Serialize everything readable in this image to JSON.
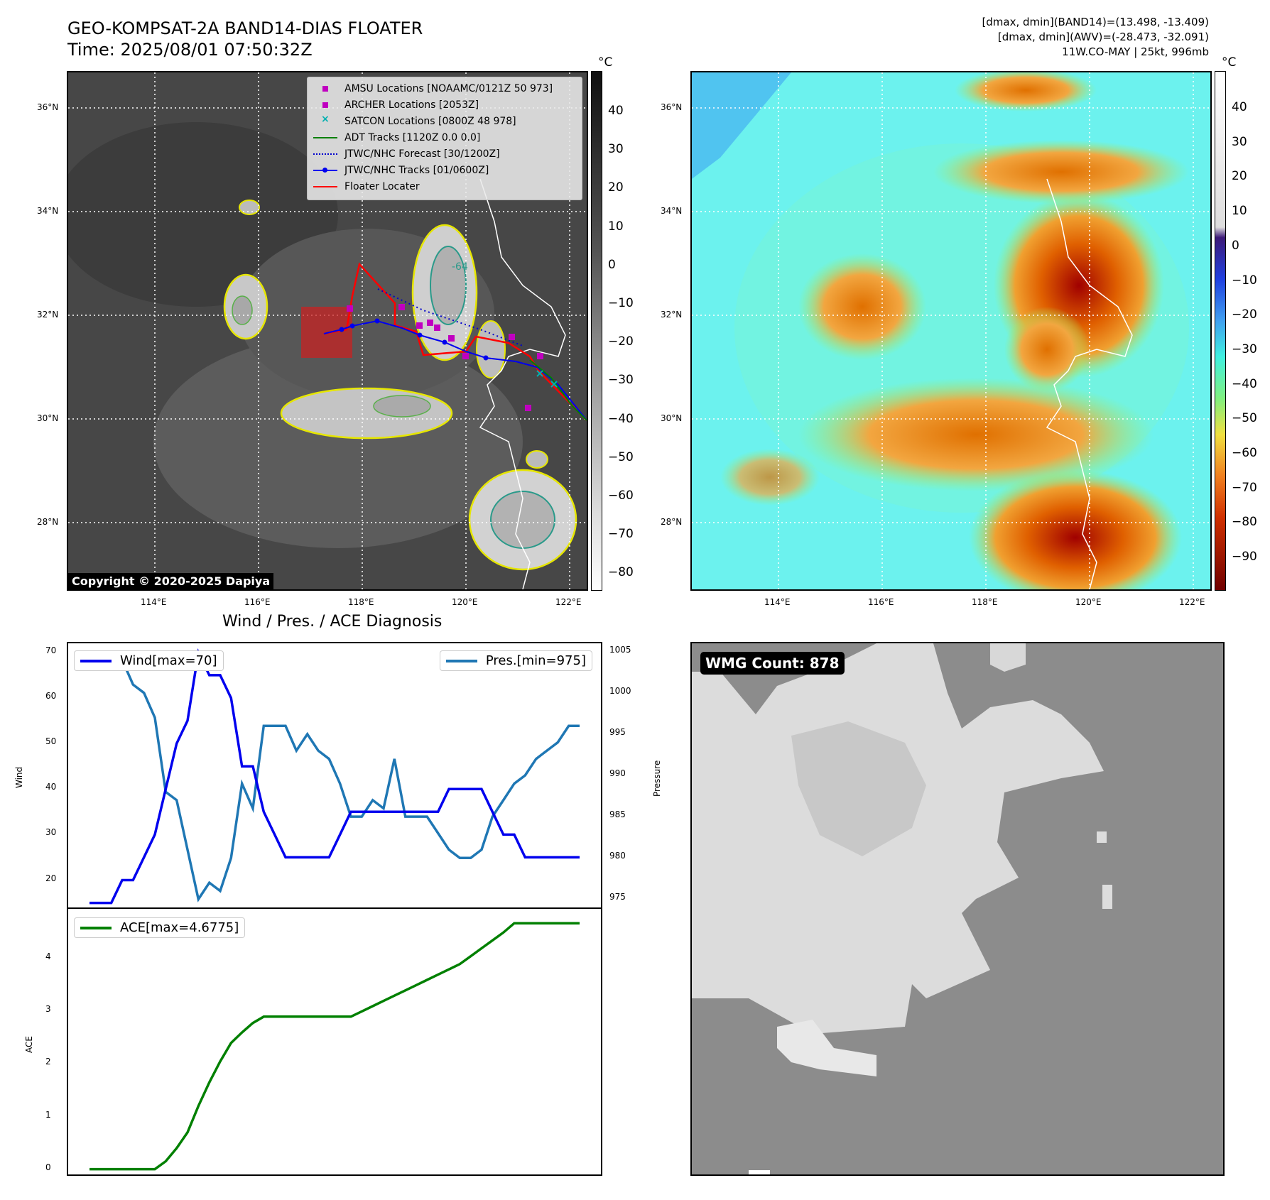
{
  "header": {
    "title_line1": "GEO-KOMPSAT-2A BAND14-DIAS FLOATER",
    "title_line2": "Time: 2025/08/01 07:50:32Z",
    "info_line1": "[dmax, dmin](BAND14)=(13.498, -13.409)",
    "info_line2": "[dmax, dmin](AWV)=(-28.473, -32.091)",
    "info_line3": "11W.CO-MAY | 25kt, 996mb"
  },
  "map": {
    "lat_labels": [
      "36°N",
      "34°N",
      "32°N",
      "30°N",
      "28°N"
    ],
    "lon_labels": [
      "114°E",
      "116°E",
      "118°E",
      "120°E",
      "122°E"
    ],
    "copyright": "Copyright © 2020-2025 Dapiya",
    "contour_label": "-64",
    "legend": [
      {
        "label": "AMSU Locations [NOAAMC/0121Z 50 973]",
        "color": "#c000c0",
        "symbol": "square"
      },
      {
        "label": "ARCHER Locations [2053Z]",
        "color": "#c000c0",
        "symbol": "square"
      },
      {
        "label": "SATCON Locations [0800Z 48 978]",
        "color": "#00b0b0",
        "symbol": "x"
      },
      {
        "label": "ADT Tracks [1120Z 0.0 0.0]",
        "color": "#008000",
        "symbol": "line"
      },
      {
        "label": "JTWC/NHC Forecast [30/1200Z]",
        "color": "#0000cc",
        "symbol": "dotted"
      },
      {
        "label": "JTWC/NHC Tracks [01/0600Z]",
        "color": "#0000ee",
        "symbol": "line-dot"
      },
      {
        "label": "Floater Locater",
        "color": "#ff0000",
        "symbol": "line"
      }
    ]
  },
  "colorbar_left": {
    "unit": "°C",
    "labels": [
      "40",
      "30",
      "20",
      "10",
      "0",
      "−10",
      "−20",
      "−30",
      "−40",
      "−50",
      "−60",
      "−70",
      "−80"
    ]
  },
  "colorbar_right": {
    "unit": "°C",
    "labels": [
      "40",
      "30",
      "20",
      "10",
      "0",
      "−10",
      "−20",
      "−30",
      "−40",
      "−50",
      "−60",
      "−70",
      "−80",
      "−90"
    ]
  },
  "wmg": {
    "label": "WMG Count: 878"
  },
  "chart_data": [
    {
      "type": "line",
      "title": "Wind / Pres. / ACE Diagnosis",
      "ylabel_left": "Wind",
      "ylabel_right": "Pressure",
      "left_ylim": [
        14,
        72
      ],
      "right_ylim": [
        974,
        1006
      ],
      "left_ticks": [
        "70",
        "60",
        "50",
        "40",
        "30",
        "20"
      ],
      "right_ticks": [
        "1005",
        "1000",
        "995",
        "990",
        "985",
        "980",
        "975"
      ],
      "x": [
        0,
        1,
        2,
        3,
        4,
        5,
        6,
        7,
        8,
        9,
        10,
        11,
        12,
        13,
        14,
        15,
        16,
        17,
        18,
        19,
        20,
        21,
        22,
        23,
        24,
        25,
        26,
        27,
        28,
        29,
        30,
        31,
        32,
        33,
        34,
        35,
        36,
        37,
        38,
        39,
        40,
        41,
        42,
        43,
        44,
        45
      ],
      "series": [
        {
          "name": "Wind[max=70]",
          "axis": "left",
          "color": "#0000ee",
          "values": [
            15,
            15,
            15,
            20,
            20,
            25,
            30,
            40,
            50,
            55,
            70,
            65,
            65,
            60,
            45,
            45,
            35,
            30,
            25,
            25,
            25,
            25,
            25,
            30,
            35,
            35,
            35,
            35,
            35,
            35,
            35,
            35,
            35,
            40,
            40,
            40,
            40,
            35,
            30,
            30,
            25,
            25,
            25,
            25,
            25,
            25
          ]
        },
        {
          "name": "Pres.[min=975]",
          "axis": "right",
          "color": "#1f77b4",
          "values": [
            1004,
            1004,
            1004,
            1004,
            1001,
            1000,
            997,
            988,
            987,
            981,
            975,
            977,
            976,
            980,
            989,
            986,
            996,
            996,
            996,
            993,
            995,
            993,
            992,
            989,
            985,
            985,
            987,
            986,
            992,
            985,
            985,
            985,
            983,
            981,
            980,
            980,
            981,
            985,
            987,
            989,
            990,
            992,
            993,
            994,
            996,
            996
          ]
        }
      ]
    },
    {
      "type": "line",
      "ylabel": "ACE",
      "ylim": [
        -0.1,
        4.95
      ],
      "ticks": [
        "4",
        "3",
        "2",
        "1",
        "0"
      ],
      "x": [
        0,
        1,
        2,
        3,
        4,
        5,
        6,
        7,
        8,
        9,
        10,
        11,
        12,
        13,
        14,
        15,
        16,
        17,
        18,
        19,
        20,
        21,
        22,
        23,
        24,
        25,
        26,
        27,
        28,
        29,
        30,
        31,
        32,
        33,
        34,
        35,
        36,
        37,
        38,
        39,
        40,
        41,
        42,
        43,
        44,
        45
      ],
      "series": [
        {
          "name": "ACE[max=4.6775]",
          "color": "#008000",
          "values": [
            0,
            0,
            0,
            0,
            0,
            0,
            0,
            0.15,
            0.4,
            0.7,
            1.2,
            1.65,
            2.05,
            2.4,
            2.6,
            2.78,
            2.9,
            2.9,
            2.9,
            2.9,
            2.9,
            2.9,
            2.9,
            2.9,
            2.9,
            3.0,
            3.1,
            3.2,
            3.3,
            3.4,
            3.5,
            3.6,
            3.7,
            3.8,
            3.9,
            4.05,
            4.2,
            4.35,
            4.5,
            4.6775,
            4.6775,
            4.6775,
            4.6775,
            4.6775,
            4.6775,
            4.6775
          ]
        }
      ]
    }
  ]
}
